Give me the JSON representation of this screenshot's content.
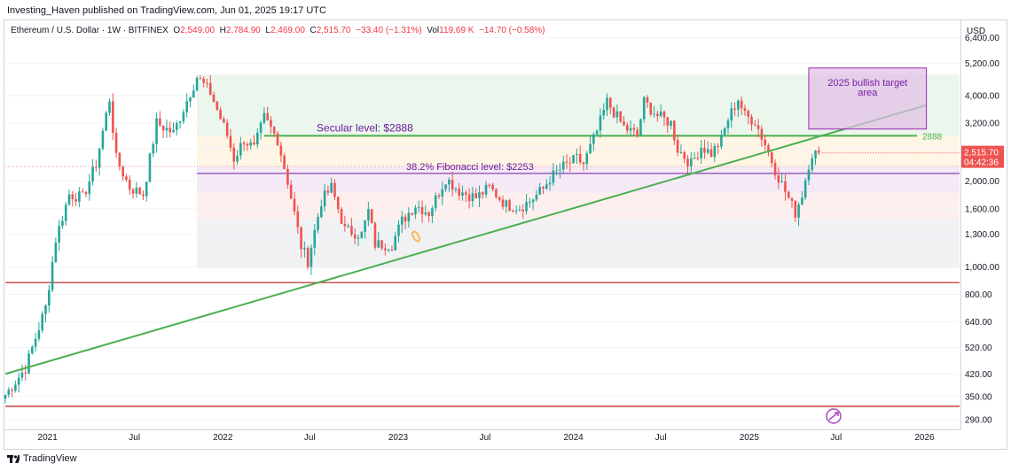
{
  "header": {
    "publisher": "Investing_Haven published on TradingView.com, Jun 01, 2025 19:17 UTC"
  },
  "symbol": {
    "name": "Ethereum / U.S. Dollar · 1W · BITFINEX",
    "open_label": "O",
    "open": "2,549.00",
    "high_label": "H",
    "high": "2,784.90",
    "low_label": "L",
    "low": "2,469.00",
    "close_label": "C",
    "close": "2,515.70",
    "change": "−33.40 (−1.31%)",
    "vol_label": "Vol",
    "vol": "119.69 K",
    "vol_change": "−14.70 (−0.58%)"
  },
  "currency": "USD",
  "last_price": {
    "value": "2,515.70",
    "countdown": "04:42:36"
  },
  "footer": {
    "brand": "TradingView"
  },
  "colors": {
    "up": "#26a69a",
    "down": "#ef5350",
    "trend": "#4caf50",
    "target": "#9c27b0",
    "support": "#b71c1c"
  },
  "chart_data": {
    "type": "candlestick",
    "scale": "log",
    "ylim": [
      270,
      7300
    ],
    "y_ticks": [
      6400,
      5200,
      4000,
      3200,
      2600,
      2000,
      1600,
      1300,
      1000,
      800,
      640,
      520,
      420,
      350,
      290
    ],
    "y_tick_labels": [
      "6,400.00",
      "5,200.00",
      "4,000.00",
      "3,200.00",
      "",
      "2,000.00",
      "1,600.00",
      "1,300.00",
      "1,000.00",
      "800.00",
      "640.00",
      "520.00",
      "420.00",
      "350.00",
      "290.00"
    ],
    "x_ticks": [
      "2021",
      "Jul",
      "2022",
      "Jul",
      "2023",
      "Jul",
      "2024",
      "Jul",
      "2025",
      "Jul",
      "2026"
    ],
    "x_range": [
      "2020-10-05",
      "2026-03-15"
    ],
    "x_tick_dates": [
      "2021-01-01",
      "2021-07-01",
      "2022-01-01",
      "2022-07-01",
      "2023-01-01",
      "2023-07-01",
      "2024-01-01",
      "2024-07-01",
      "2025-01-01",
      "2025-07-01",
      "2026-01-01"
    ],
    "anchors": [
      [
        "2020-10-05",
        355
      ],
      [
        "2020-11-16",
        440
      ],
      [
        "2020-12-28",
        720
      ],
      [
        "2021-01-18",
        1250
      ],
      [
        "2021-02-15",
        1800
      ],
      [
        "2021-03-15",
        1750
      ],
      [
        "2021-04-12",
        2300
      ],
      [
        "2021-05-10",
        3900
      ],
      [
        "2021-05-24",
        2400
      ],
      [
        "2021-06-21",
        1900
      ],
      [
        "2021-07-19",
        1800
      ],
      [
        "2021-08-16",
        3200
      ],
      [
        "2021-09-20",
        2950
      ],
      [
        "2021-10-25",
        4100
      ],
      [
        "2021-11-08",
        4650
      ],
      [
        "2021-12-06",
        4100
      ],
      [
        "2022-01-10",
        2900
      ],
      [
        "2022-01-24",
        2400
      ],
      [
        "2022-02-14",
        2800
      ],
      [
        "2022-03-07",
        2600
      ],
      [
        "2022-03-28",
        3350
      ],
      [
        "2022-04-25",
        2800
      ],
      [
        "2022-05-16",
        2000
      ],
      [
        "2022-06-13",
        1180
      ],
      [
        "2022-06-27",
        1050
      ],
      [
        "2022-07-25",
        1700
      ],
      [
        "2022-08-15",
        1900
      ],
      [
        "2022-09-12",
        1350
      ],
      [
        "2022-10-17",
        1300
      ],
      [
        "2022-10-31",
        1570
      ],
      [
        "2022-11-14",
        1200
      ],
      [
        "2022-12-19",
        1200
      ],
      [
        "2023-01-09",
        1450
      ],
      [
        "2023-02-06",
        1650
      ],
      [
        "2023-03-06",
        1550
      ],
      [
        "2023-04-10",
        2050
      ],
      [
        "2023-05-08",
        1850
      ],
      [
        "2023-06-12",
        1750
      ],
      [
        "2023-07-10",
        1900
      ],
      [
        "2023-08-14",
        1650
      ],
      [
        "2023-09-11",
        1620
      ],
      [
        "2023-10-02",
        1700
      ],
      [
        "2023-10-30",
        1880
      ],
      [
        "2023-11-13",
        2050
      ],
      [
        "2023-12-11",
        2250
      ],
      [
        "2024-01-08",
        2400
      ],
      [
        "2024-01-22",
        2300
      ],
      [
        "2024-02-19",
        3000
      ],
      [
        "2024-03-11",
        3800
      ],
      [
        "2024-04-15",
        3100
      ],
      [
        "2024-05-13",
        2900
      ],
      [
        "2024-05-27",
        3800
      ],
      [
        "2024-06-24",
        3400
      ],
      [
        "2024-07-22",
        3200
      ],
      [
        "2024-08-05",
        2600
      ],
      [
        "2024-09-02",
        2300
      ],
      [
        "2024-09-23",
        2650
      ],
      [
        "2024-10-14",
        2500
      ],
      [
        "2024-11-04",
        2800
      ],
      [
        "2024-11-18",
        3300
      ],
      [
        "2024-12-09",
        3900
      ],
      [
        "2024-12-23",
        3400
      ],
      [
        "2025-01-13",
        3250
      ],
      [
        "2025-02-03",
        2700
      ],
      [
        "2025-02-24",
        2200
      ],
      [
        "2025-03-10",
        1950
      ],
      [
        "2025-04-07",
        1550
      ],
      [
        "2025-04-21",
        1800
      ],
      [
        "2025-05-05",
        2300
      ],
      [
        "2025-05-12",
        2500
      ],
      [
        "2025-05-26",
        2515
      ]
    ],
    "levels": [
      {
        "label": "Secular level: $2888",
        "value": 2888,
        "axis_label": "2888"
      },
      {
        "label": "38.2% Fibonacci level: $2253",
        "value": 2253
      }
    ],
    "annotations": [
      {
        "text": "2025 bullish target area",
        "box": {
          "date_from": "2025-05-05",
          "date_to": "2026-01-05",
          "price_from": 3050,
          "price_to": 5000
        }
      }
    ],
    "fib_zones": [
      {
        "from": 4750,
        "to": 2888,
        "color": "#e8f5e9"
      },
      {
        "from": 2888,
        "to": 2253,
        "color": "#fff3e0"
      },
      {
        "from": 2253,
        "to": 1820,
        "color": "#f3e5f5"
      },
      {
        "from": 1820,
        "to": 1470,
        "color": "#fdecea"
      },
      {
        "from": 1470,
        "to": 990,
        "color": "#eceff1"
      }
    ],
    "fib_zone_start": "2021-11-08",
    "trendline": {
      "from": [
        "2020-10-05",
        420
      ],
      "to": [
        "2026-01-05",
        3700
      ]
    },
    "horizontal_lines": [
      {
        "value": 880,
        "color": "#b71c1c"
      },
      {
        "value": 323,
        "color": "#b71c1c"
      },
      {
        "value": 2130,
        "color": "#6a1b9a"
      }
    ],
    "last_close": 2515.7
  }
}
